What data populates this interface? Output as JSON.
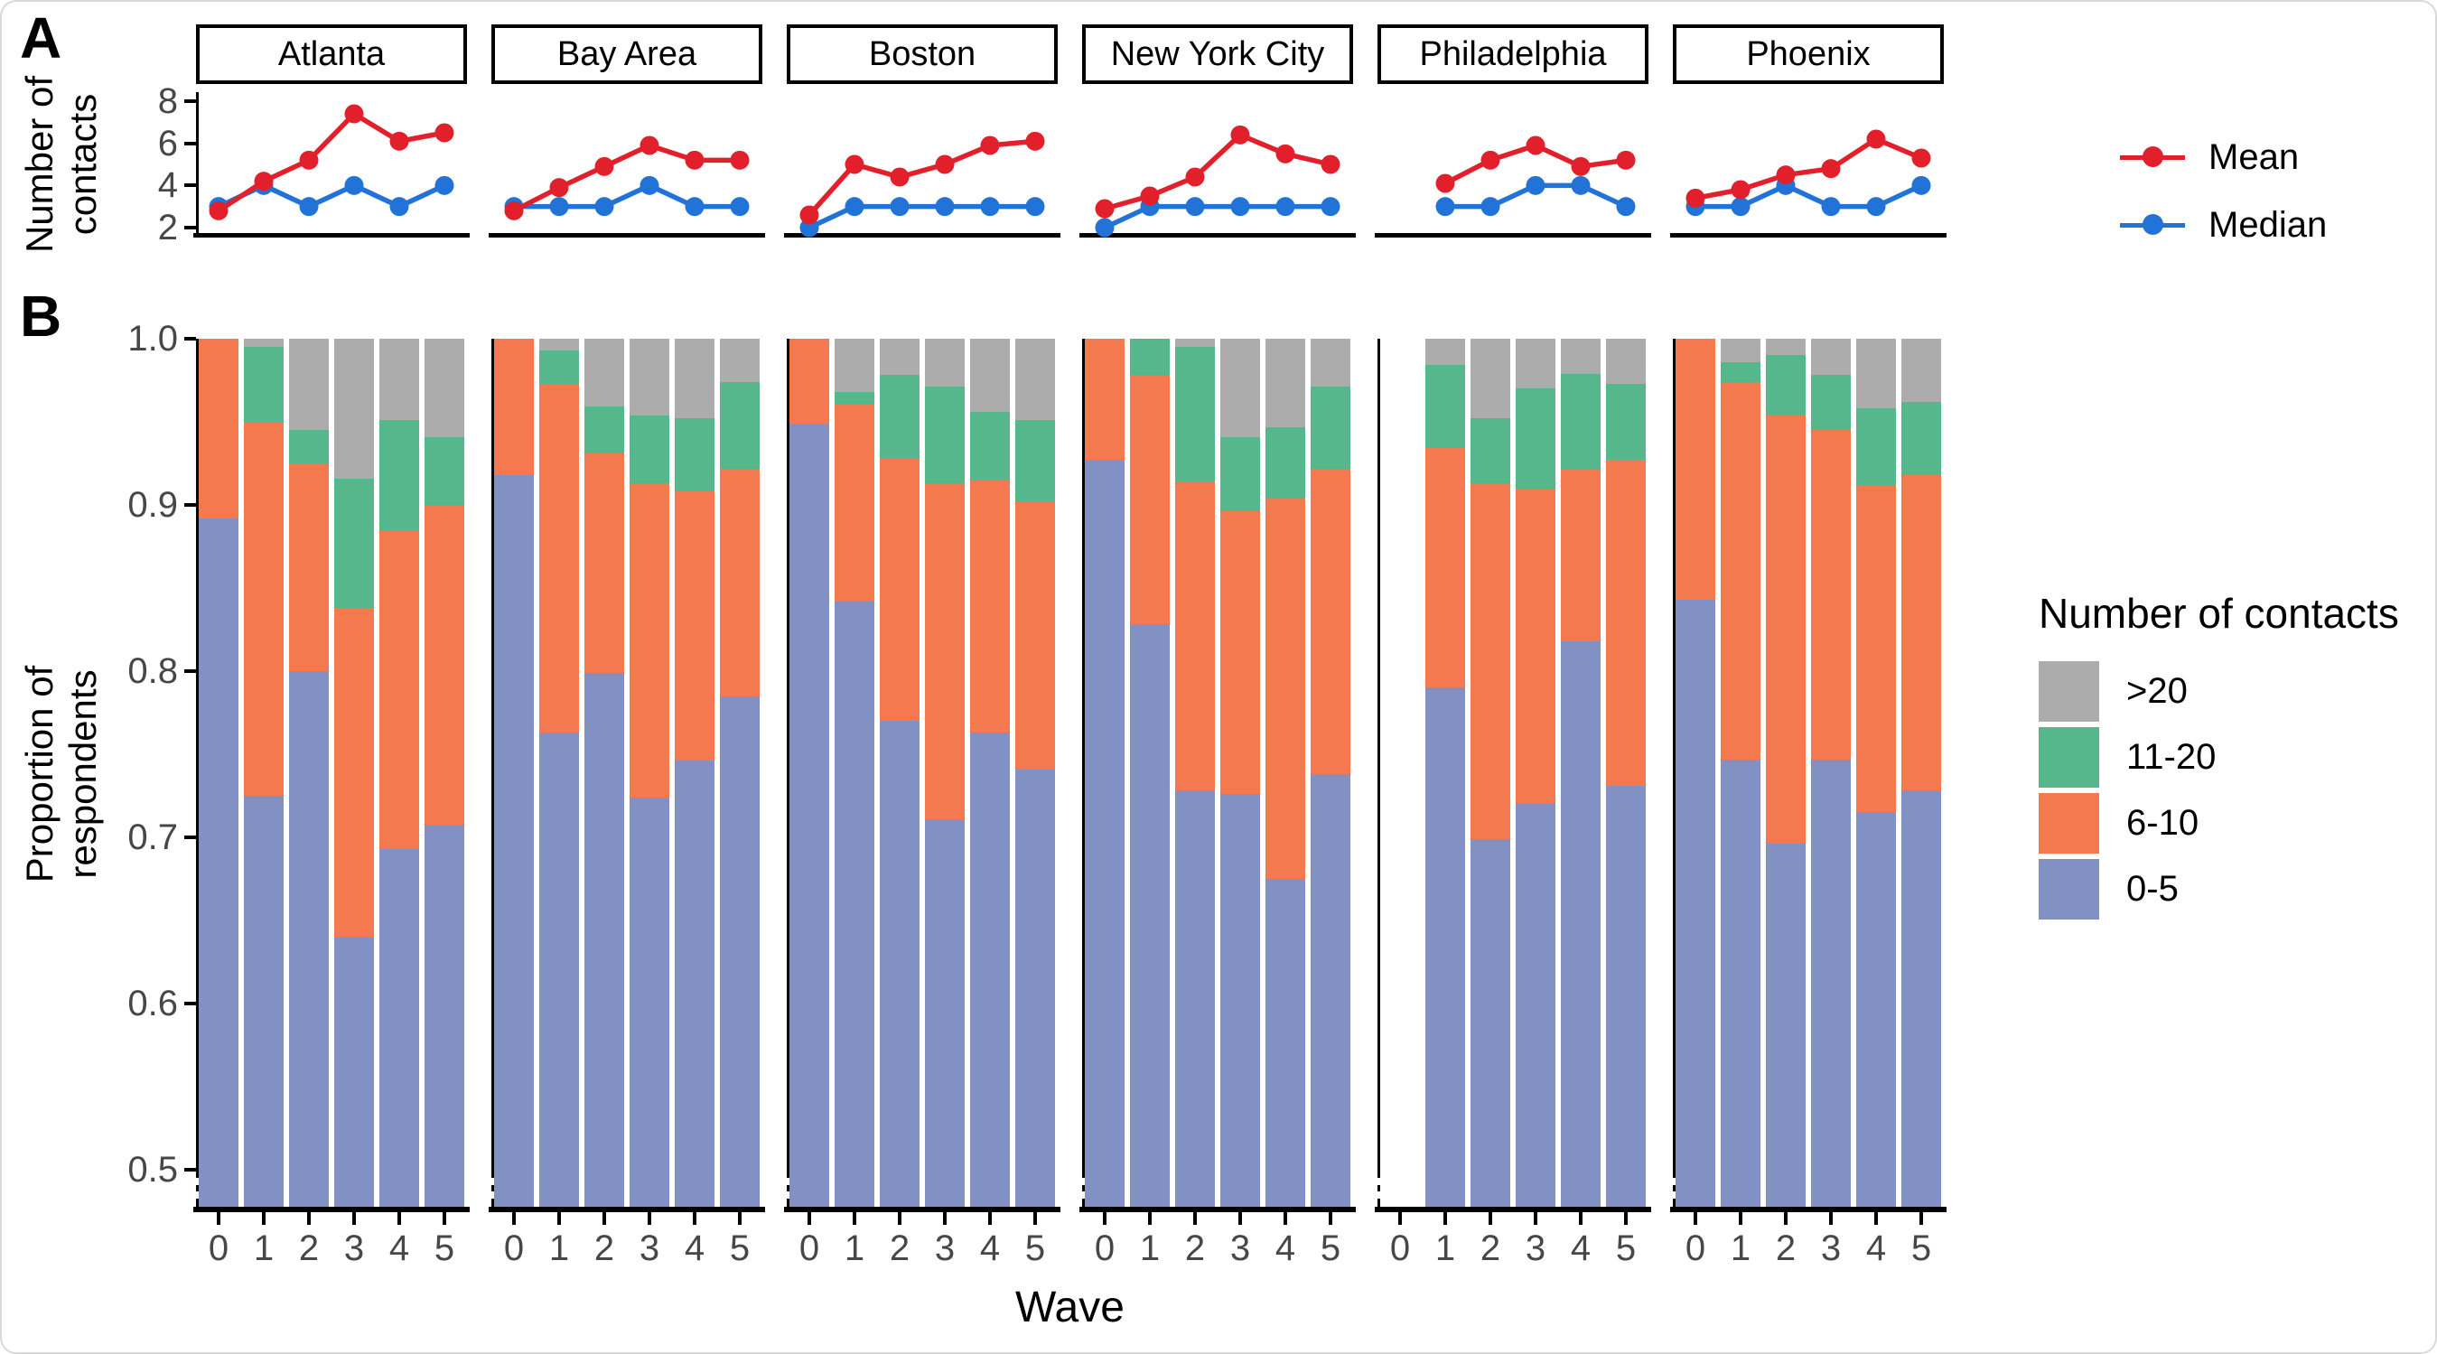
{
  "panel_a_label": "A",
  "panel_b_label": "B",
  "chart_data": [
    {
      "type": "line",
      "panel": "A",
      "facets": [
        "Atlanta",
        "Bay Area",
        "Boston",
        "New York City",
        "Philadelphia",
        "Phoenix"
      ],
      "x": [
        0,
        1,
        2,
        3,
        4,
        5
      ],
      "ylabel_lines": [
        "Number of",
        "contacts"
      ],
      "yticks": [
        8,
        6,
        4,
        2
      ],
      "ylim": [
        1.8,
        8.5
      ],
      "grid": false,
      "legend_position": "right",
      "series": [
        {
          "name": "Mean",
          "color": "#e1202b",
          "values_by_city": {
            "Atlanta": [
              2.8,
              4.2,
              5.2,
              7.4,
              6.1,
              6.5
            ],
            "Bay Area": [
              2.8,
              3.9,
              4.9,
              5.9,
              5.2,
              5.2
            ],
            "Boston": [
              2.6,
              5.0,
              4.4,
              5.0,
              5.9,
              6.1
            ],
            "New York City": [
              2.9,
              3.5,
              4.4,
              6.4,
              5.5,
              5.0
            ],
            "Philadelphia": [
              null,
              4.1,
              5.2,
              5.9,
              4.9,
              5.2
            ],
            "Phoenix": [
              3.4,
              3.8,
              4.5,
              4.8,
              6.2,
              5.3
            ]
          }
        },
        {
          "name": "Median",
          "color": "#2173d8",
          "values_by_city": {
            "Atlanta": [
              3,
              4,
              3,
              4,
              3,
              4
            ],
            "Bay Area": [
              3,
              3,
              3,
              4,
              3,
              3
            ],
            "Boston": [
              2,
              3,
              3,
              3,
              3,
              3
            ],
            "New York City": [
              2,
              3,
              3,
              3,
              3,
              3
            ],
            "Philadelphia": [
              null,
              3,
              3,
              4,
              4,
              3
            ],
            "Phoenix": [
              3,
              3,
              4,
              3,
              3,
              4
            ]
          }
        }
      ]
    },
    {
      "type": "bar",
      "panel": "B",
      "stacked": true,
      "facets": [
        "Atlanta",
        "Bay Area",
        "Boston",
        "New York City",
        "Philadelphia",
        "Phoenix"
      ],
      "x": [
        0,
        1,
        2,
        3,
        4,
        5
      ],
      "xlabel": "Wave",
      "ylabel_lines": [
        "Proportion of",
        "respondents"
      ],
      "ytick_labels": [
        "1.0",
        "0.9",
        "0.8",
        "0.7",
        "0.6",
        "0.5"
      ],
      "ytick_values": [
        1.0,
        0.9,
        0.8,
        0.7,
        0.6,
        0.5
      ],
      "ylim_display": [
        0.478,
        1.0
      ],
      "grid": false,
      "stack_order_bottom_to_top": [
        "0-5",
        "6-10",
        "11-20",
        ">20"
      ],
      "colors": {
        "0-5": "#8191c4",
        "6-10": "#f5794f",
        "11-20": "#56b78c",
        ">20": "#acacac"
      },
      "proportions_by_city": {
        "Atlanta": [
          [
            0.892,
            0.108,
            0.0,
            0.0
          ],
          [
            0.725,
            0.225,
            0.045,
            0.005
          ],
          [
            0.8,
            0.125,
            0.02,
            0.055
          ],
          [
            0.64,
            0.198,
            0.078,
            0.084
          ],
          [
            0.693,
            0.192,
            0.066,
            0.049
          ],
          [
            0.707,
            0.193,
            0.041,
            0.059
          ]
        ],
        "Bay Area": [
          [
            0.918,
            0.082,
            0.0,
            0.0
          ],
          [
            0.763,
            0.21,
            0.02,
            0.007
          ],
          [
            0.799,
            0.132,
            0.028,
            0.041
          ],
          [
            0.724,
            0.189,
            0.041,
            0.046
          ],
          [
            0.746,
            0.162,
            0.044,
            0.048
          ],
          [
            0.785,
            0.137,
            0.052,
            0.026
          ]
        ],
        "Boston": [
          [
            0.949,
            0.051,
            0.0,
            0.0
          ],
          [
            0.842,
            0.119,
            0.007,
            0.032
          ],
          [
            0.77,
            0.158,
            0.05,
            0.022
          ],
          [
            0.711,
            0.202,
            0.058,
            0.029
          ],
          [
            0.763,
            0.152,
            0.041,
            0.044
          ],
          [
            0.741,
            0.161,
            0.049,
            0.049
          ]
        ],
        "New York City": [
          [
            0.927,
            0.073,
            0.0,
            0.0
          ],
          [
            0.828,
            0.15,
            0.022,
            0.0
          ],
          [
            0.728,
            0.186,
            0.081,
            0.005
          ],
          [
            0.726,
            0.17,
            0.045,
            0.059
          ],
          [
            0.675,
            0.229,
            0.043,
            0.053
          ],
          [
            0.738,
            0.184,
            0.049,
            0.029
          ]
        ],
        "Philadelphia": [
          null,
          [
            0.79,
            0.144,
            0.05,
            0.016
          ],
          [
            0.699,
            0.214,
            0.039,
            0.048
          ],
          [
            0.72,
            0.189,
            0.061,
            0.03
          ],
          [
            0.818,
            0.103,
            0.058,
            0.021
          ],
          [
            0.731,
            0.196,
            0.046,
            0.027
          ]
        ],
        "Phoenix": [
          [
            0.843,
            0.157,
            0.0,
            0.0
          ],
          [
            0.747,
            0.227,
            0.012,
            0.014
          ],
          [
            0.696,
            0.258,
            0.036,
            0.01
          ],
          [
            0.747,
            0.198,
            0.033,
            0.022
          ],
          [
            0.715,
            0.197,
            0.046,
            0.042
          ],
          [
            0.728,
            0.19,
            0.044,
            0.038
          ]
        ]
      },
      "legend": {
        "title": "Number of contacts",
        "items": [
          {
            "label": ">20",
            "color": "#acacac"
          },
          {
            "label": "11-20",
            "color": "#56b78c"
          },
          {
            "label": "6-10",
            "color": "#f5794f"
          },
          {
            "label": "0-5",
            "color": "#8191c4"
          }
        ]
      }
    }
  ]
}
